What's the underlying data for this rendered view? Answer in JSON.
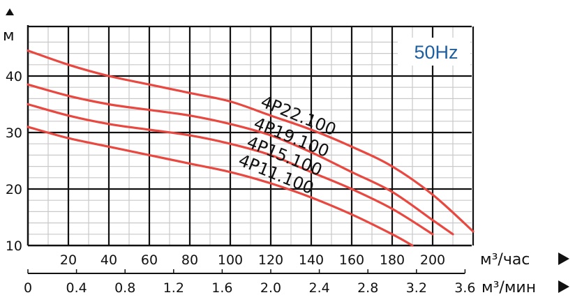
{
  "chart_data": {
    "type": "line",
    "frequency_label": "50Hz",
    "y_unit": "м",
    "x_unit_primary": "м³/час",
    "x_unit_secondary": "м³/мин",
    "ylim": [
      10,
      47
    ],
    "xlim_m3h": [
      0,
      220
    ],
    "y_ticks": [
      "10",
      "20",
      "30",
      "40"
    ],
    "x_ticks_primary": [
      {
        "value": 20,
        "label": "20"
      },
      {
        "value": 40,
        "label": "40"
      },
      {
        "value": 60,
        "label": "60"
      },
      {
        "value": 80,
        "label": "80"
      },
      {
        "value": 100,
        "label": "100"
      },
      {
        "value": 120,
        "label": "120"
      },
      {
        "value": 140,
        "label": "140"
      },
      {
        "value": 160,
        "label": "160"
      },
      {
        "value": 180,
        "label": "180"
      },
      {
        "value": 200,
        "label": "200"
      }
    ],
    "x_ticks_secondary": [
      {
        "value": 0,
        "label": "0"
      },
      {
        "value": 0.4,
        "label": "0.4"
      },
      {
        "value": 0.8,
        "label": "0.8"
      },
      {
        "value": 1.2,
        "label": "1.2"
      },
      {
        "value": 1.6,
        "label": "1.6"
      },
      {
        "value": 2.0,
        "label": "2.0"
      },
      {
        "value": 2.4,
        "label": "2.4"
      },
      {
        "value": 2.8,
        "label": "2.8"
      },
      {
        "value": 3.2,
        "label": "3.2"
      },
      {
        "value": 3.6,
        "label": "3.6"
      }
    ],
    "grid": true,
    "curve_color": "#e8483f",
    "frequency_color": "#1f5f9f",
    "series": [
      {
        "name": "4P22.100",
        "x": [
          0,
          20,
          40,
          60,
          80,
          100,
          120,
          140,
          160,
          180,
          200,
          220
        ],
        "y": [
          44.5,
          42,
          40,
          38.5,
          37,
          35.5,
          33,
          30.5,
          27.5,
          24,
          19,
          12.5
        ]
      },
      {
        "name": "4P19.100",
        "x": [
          0,
          20,
          40,
          60,
          80,
          100,
          120,
          140,
          160,
          180,
          200,
          210
        ],
        "y": [
          38.5,
          36.5,
          35,
          34,
          33,
          31.5,
          29.5,
          26.5,
          23,
          19.5,
          14.5,
          12
        ]
      },
      {
        "name": "4P15.100",
        "x": [
          0,
          20,
          40,
          60,
          80,
          100,
          120,
          140,
          160,
          180,
          200
        ],
        "y": [
          35,
          33,
          31.5,
          30.5,
          29.5,
          28,
          26,
          23,
          20,
          16.5,
          12
        ]
      },
      {
        "name": "4P11.100",
        "x": [
          0,
          20,
          40,
          60,
          80,
          100,
          120,
          140,
          160,
          180,
          190
        ],
        "y": [
          31,
          29,
          27.5,
          26,
          24.5,
          23,
          21,
          18.5,
          15.5,
          12,
          10
        ]
      }
    ]
  }
}
